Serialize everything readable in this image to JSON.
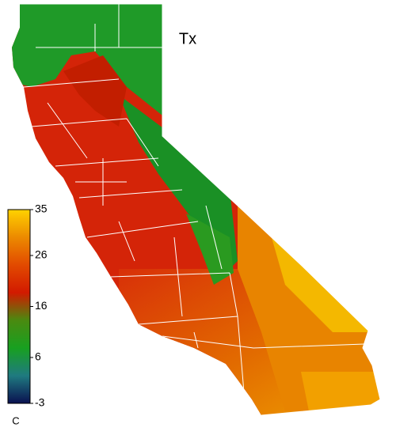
{
  "title": "Tx",
  "colorbar": {
    "label": "C",
    "lim": [
      -3,
      35
    ],
    "ticks": [
      -3,
      6,
      16,
      26,
      35
    ],
    "colors": [
      "#0a1050",
      "#1f7a80",
      "#18a020",
      "#4a8a10",
      "#d21a00",
      "#e24a00",
      "#ec8a00",
      "#ffd200"
    ]
  }
}
